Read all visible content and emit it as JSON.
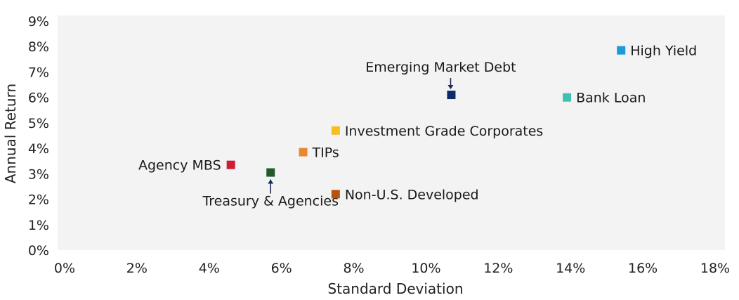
{
  "chart_data": {
    "type": "scatter",
    "xlabel": "Standard Deviation",
    "ylabel": "Annual Return",
    "xlim": [
      0,
      18
    ],
    "ylim": [
      0,
      9
    ],
    "x_ticks": [
      "0%",
      "2%",
      "4%",
      "6%",
      "8%",
      "10%",
      "12%",
      "14%",
      "16%",
      "18%"
    ],
    "y_ticks": [
      "0%",
      "1%",
      "2%",
      "3%",
      "4%",
      "5%",
      "6%",
      "7%",
      "8%",
      "9%"
    ],
    "plot_background": "#f3f3f3",
    "grid": false,
    "points": [
      {
        "label": "High Yield",
        "x": 15.4,
        "y": 7.85,
        "color": "#1a9bd7",
        "label_side": "right"
      },
      {
        "label": "Emerging Market Debt",
        "x": 10.7,
        "y": 6.1,
        "color": "#0d2b6b",
        "label_side": "above-arrow"
      },
      {
        "label": "Bank Loan",
        "x": 13.9,
        "y": 6.0,
        "color": "#3fc1b0",
        "label_side": "right"
      },
      {
        "label": "Investment Grade Corporates",
        "x": 7.5,
        "y": 4.7,
        "color": "#f6be1e",
        "label_side": "right"
      },
      {
        "label": "TIPs",
        "x": 6.6,
        "y": 3.85,
        "color": "#e8872f",
        "label_side": "right"
      },
      {
        "label": "Agency MBS",
        "x": 4.6,
        "y": 3.35,
        "color": "#cc1f36",
        "label_side": "left"
      },
      {
        "label": "Treasury & Agencies",
        "x": 5.7,
        "y": 3.05,
        "color": "#1e5a2a",
        "label_side": "below-arrow"
      },
      {
        "label": "Non-U.S. Developed",
        "x": 7.5,
        "y": 2.2,
        "color": "#b5530f",
        "label_side": "right"
      }
    ]
  }
}
